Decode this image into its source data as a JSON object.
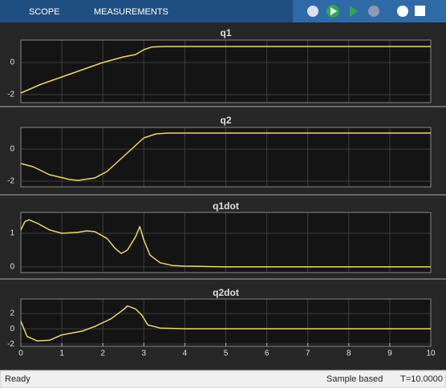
{
  "toolbar": {
    "tabs": [
      "SCOPE",
      "MEASUREMENTS"
    ]
  },
  "status": {
    "left": "Ready",
    "mode": "Sample based",
    "time": "T=10.0000"
  },
  "chart_data": [
    {
      "type": "line",
      "title": "q1",
      "color": "#f0d66b",
      "grid": true,
      "x": [
        0,
        0.5,
        1,
        1.5,
        2,
        2.5,
        2.8,
        3,
        3.2,
        3.5,
        4,
        5,
        6,
        7,
        8,
        9,
        10
      ],
      "values": [
        -1.9,
        -1.35,
        -0.9,
        -0.45,
        0.0,
        0.35,
        0.5,
        0.8,
        0.97,
        1.0,
        1.0,
        1.0,
        1.0,
        1.0,
        1.0,
        1.0,
        1.0
      ],
      "xlim": [
        0,
        10
      ],
      "ylim": [
        -2.5,
        1.4
      ],
      "yticks": [
        -2,
        0
      ]
    },
    {
      "type": "line",
      "title": "q2",
      "color": "#f0d66b",
      "grid": true,
      "x": [
        0,
        0.3,
        0.7,
        1.2,
        1.4,
        1.8,
        2.1,
        2.4,
        2.7,
        3.0,
        3.3,
        3.6,
        4,
        5,
        6,
        7,
        8,
        9,
        10
      ],
      "values": [
        -0.9,
        -1.1,
        -1.6,
        -1.9,
        -1.95,
        -1.8,
        -1.4,
        -0.7,
        0.0,
        0.7,
        0.95,
        1.0,
        1.0,
        1.0,
        1.0,
        1.0,
        1.0,
        1.0,
        1.0
      ],
      "xlim": [
        0,
        10
      ],
      "ylim": [
        -2.35,
        1.35
      ],
      "yticks": [
        -2,
        0
      ]
    },
    {
      "type": "line",
      "title": "q1dot",
      "color": "#f0d66b",
      "grid": true,
      "x": [
        0,
        0.1,
        0.2,
        0.4,
        0.7,
        1.0,
        1.4,
        1.6,
        1.8,
        2.1,
        2.3,
        2.45,
        2.6,
        2.8,
        2.9,
        3.0,
        3.15,
        3.4,
        3.7,
        4,
        5,
        6,
        7,
        8,
        9,
        10
      ],
      "values": [
        1.1,
        1.35,
        1.4,
        1.3,
        1.1,
        1.0,
        1.03,
        1.07,
        1.05,
        0.85,
        0.55,
        0.4,
        0.5,
        0.9,
        1.2,
        0.8,
        0.35,
        0.12,
        0.04,
        0.02,
        0.0,
        0.0,
        0.0,
        0.0,
        0.0,
        0.0
      ],
      "xlim": [
        0,
        10
      ],
      "ylim": [
        -0.17,
        1.62
      ],
      "yticks": [
        0,
        1
      ]
    },
    {
      "type": "line",
      "title": "q2dot",
      "color": "#f0d66b",
      "grid": true,
      "x": [
        0,
        0.15,
        0.4,
        0.7,
        1.0,
        1.5,
        1.8,
        2.2,
        2.5,
        2.6,
        2.8,
        2.95,
        3.1,
        3.4,
        4,
        5,
        6,
        7,
        8,
        9,
        10
      ],
      "values": [
        1.0,
        -1.0,
        -1.6,
        -1.5,
        -0.8,
        -0.3,
        0.3,
        1.3,
        2.5,
        3.0,
        2.6,
        1.8,
        0.5,
        0.1,
        0.0,
        0.0,
        0.0,
        0.0,
        0.0,
        0.0,
        0.0
      ],
      "xlim": [
        0,
        10
      ],
      "ylim": [
        -2.3,
        3.9
      ],
      "yticks": [
        -2,
        0,
        2
      ],
      "xticks": [
        0,
        1,
        2,
        3,
        4,
        5,
        6,
        7,
        8,
        9,
        10
      ]
    }
  ]
}
